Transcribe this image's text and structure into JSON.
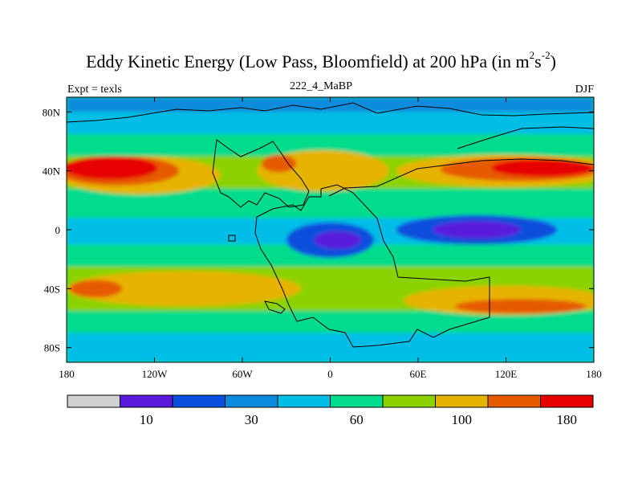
{
  "chart_data": {
    "type": "heatmap",
    "title": "Eddy Kinetic Energy (Low Pass, Bloomfield) at 200 hPa (in m",
    "title_units": {
      "sup1": "2",
      "mid": "s",
      "sup2": "-2",
      "tail": ")"
    },
    "subtitle_left": "Expt = texls",
    "subtitle_center": "222_4_MaBP",
    "subtitle_right": "DJF",
    "x_range": [
      -180,
      180
    ],
    "y_range": [
      -90,
      90
    ],
    "x_ticks": [
      {
        "value": -180,
        "label": "180"
      },
      {
        "value": -120,
        "label": "120W"
      },
      {
        "value": -60,
        "label": "60W"
      },
      {
        "value": 0,
        "label": "0"
      },
      {
        "value": 60,
        "label": "60E"
      },
      {
        "value": 120,
        "label": "120E"
      },
      {
        "value": 180,
        "label": "180"
      }
    ],
    "y_ticks": [
      {
        "value": 80,
        "label": "80N"
      },
      {
        "value": 40,
        "label": "40N"
      },
      {
        "value": 0,
        "label": "0"
      },
      {
        "value": -40,
        "label": "40S"
      },
      {
        "value": -80,
        "label": "80S"
      }
    ],
    "colorbar": {
      "colors": [
        "#d0d0d0",
        "#5a1adc",
        "#0a50dc",
        "#0a8cdc",
        "#00bee6",
        "#00dc8c",
        "#8cd200",
        "#e6b400",
        "#e65a00",
        "#e60000"
      ],
      "labels": [
        {
          "index": 1,
          "text": "10"
        },
        {
          "index": 3,
          "text": "30"
        },
        {
          "index": 5,
          "text": "60"
        },
        {
          "index": 7,
          "text": "100"
        },
        {
          "index": 9,
          "text": "180"
        }
      ]
    },
    "field_levels": [
      {
        "level": 4,
        "band": [
          55,
          90
        ],
        "shape": "ring"
      },
      {
        "level": 7,
        "lon": -130,
        "lat": 37,
        "rx": 55,
        "ry": 13
      },
      {
        "level": 8,
        "lon": -145,
        "lat": 40,
        "rx": 42,
        "ry": 10
      },
      {
        "level": 9,
        "lon": -150,
        "lat": 42,
        "rx": 32,
        "ry": 8
      },
      {
        "level": 7,
        "lon": 120,
        "lat": 40,
        "rx": 75,
        "ry": 11
      },
      {
        "level": 8,
        "lon": 130,
        "lat": 41,
        "rx": 55,
        "ry": 8
      },
      {
        "level": 9,
        "lon": 145,
        "lat": 42,
        "rx": 35,
        "ry": 6
      },
      {
        "level": 7,
        "lon": -5,
        "lat": 40,
        "rx": 45,
        "ry": 14
      },
      {
        "level": 8,
        "lon": -35,
        "lat": 45,
        "rx": 12,
        "ry": 6
      },
      {
        "level": 2,
        "lon": 100,
        "lat": 0,
        "rx": 55,
        "ry": 10
      },
      {
        "level": 1,
        "lon": 100,
        "lat": 0,
        "rx": 30,
        "ry": 6
      },
      {
        "level": 2,
        "lon": 0,
        "lat": -7,
        "rx": 30,
        "ry": 12
      },
      {
        "level": 1,
        "lon": 5,
        "lat": -7,
        "rx": 16,
        "ry": 6
      },
      {
        "level": 7,
        "lon": -100,
        "lat": -40,
        "rx": 80,
        "ry": 12
      },
      {
        "level": 8,
        "lon": -160,
        "lat": -40,
        "rx": 18,
        "ry": 6
      },
      {
        "level": 7,
        "lon": 120,
        "lat": -48,
        "rx": 70,
        "ry": 10
      },
      {
        "level": 8,
        "lon": 130,
        "lat": -52,
        "rx": 45,
        "ry": 5
      }
    ]
  }
}
